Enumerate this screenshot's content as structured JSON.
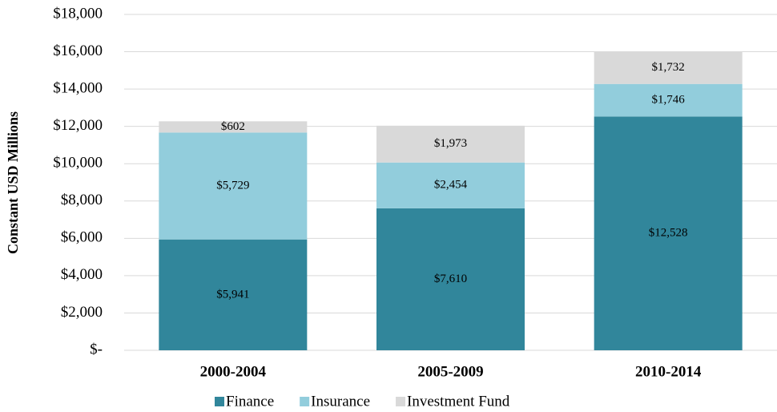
{
  "chart_data": {
    "type": "stacked_bar",
    "y_label": "Constant USD Millions",
    "categories": [
      "2000-2004",
      "2005-2009",
      "2010-2014"
    ],
    "series": [
      {
        "name": "Finance",
        "color": "#31869b",
        "values": [
          5941,
          7610,
          12528
        ],
        "value_labels": [
          "$5,941",
          "$7,610",
          "$12,528"
        ]
      },
      {
        "name": "Insurance",
        "color": "#92cddc",
        "values": [
          5729,
          2454,
          1746
        ],
        "value_labels": [
          "$5,729",
          "$2,454",
          "$1,746"
        ]
      },
      {
        "name": "Investment Fund",
        "color": "#d9d9d9",
        "values": [
          602,
          1973,
          1732
        ],
        "value_labels": [
          "$602",
          "$1,973",
          "$1,732"
        ]
      }
    ],
    "ylim": [
      0,
      18000
    ],
    "yticks": [
      {
        "value": 0,
        "label": "$-"
      },
      {
        "value": 2000,
        "label": "$2,000"
      },
      {
        "value": 4000,
        "label": "$4,000"
      },
      {
        "value": 6000,
        "label": "$6,000"
      },
      {
        "value": 8000,
        "label": "$8,000"
      },
      {
        "value": 10000,
        "label": "$10,000"
      },
      {
        "value": 12000,
        "label": "$12,000"
      },
      {
        "value": 14000,
        "label": "$14,000"
      },
      {
        "value": 16000,
        "label": "$16,000"
      },
      {
        "value": 18000,
        "label": "$18,000"
      }
    ],
    "grid": true
  }
}
